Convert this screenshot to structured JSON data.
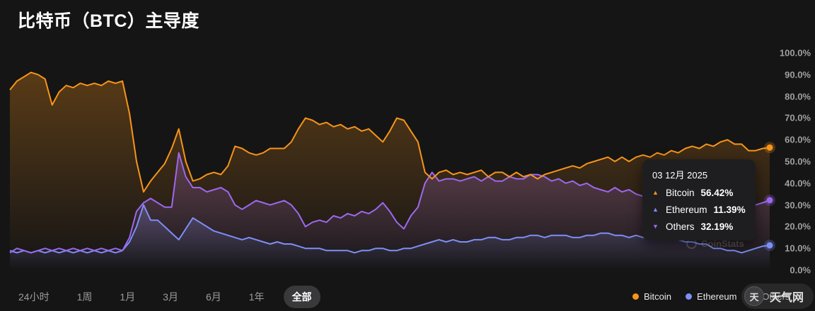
{
  "header": {
    "title": "比特币（BTC）主导度"
  },
  "tooltip": {
    "date": "03 12月 2025",
    "rows": [
      {
        "name": "Bitcoin",
        "value": "56.42%",
        "direction": "up",
        "color": "#f7941a"
      },
      {
        "name": "Ethereum",
        "value": "11.39%",
        "direction": "up",
        "color": "#7d8ff7"
      },
      {
        "name": "Others",
        "value": "32.19%",
        "direction": "down",
        "color": "#9d68f1"
      }
    ]
  },
  "toolbar": {
    "ranges": [
      {
        "id": "24h",
        "label": "24小时",
        "active": false
      },
      {
        "id": "1w",
        "label": "1周",
        "active": false
      },
      {
        "id": "1m",
        "label": "1月",
        "active": false
      },
      {
        "id": "3m",
        "label": "3月",
        "active": false
      },
      {
        "id": "6m",
        "label": "6月",
        "active": false
      },
      {
        "id": "1y",
        "label": "1年",
        "active": false
      },
      {
        "id": "all",
        "label": "全部",
        "active": true
      }
    ]
  },
  "legend": {
    "items": [
      {
        "label": "Bitcoin",
        "color": "#f7941a"
      },
      {
        "label": "Ethereum",
        "color": "#7d8ff7"
      },
      {
        "label": "Others",
        "color": "#9d68f1"
      }
    ]
  },
  "watermarks": {
    "chart": "CoinStats",
    "site": "天气网"
  },
  "chart_data": {
    "type": "line",
    "title": "比特币（BTC）主导度",
    "selected_range": "全部",
    "ylim": [
      0,
      100
    ],
    "unit": "%",
    "grid": false,
    "legend_position": "bottom-right",
    "x_axis_labels_visible": false,
    "y_ticks": [
      "100.0%",
      "90.0%",
      "80.0%",
      "70.0%",
      "60.0%",
      "50.0%",
      "40.0%",
      "30.0%",
      "20.0%",
      "10.0%",
      "0.0%"
    ],
    "series": [
      {
        "name": "Bitcoin",
        "color": "#f7941a",
        "latest": 56.42,
        "values": [
          83,
          87,
          89,
          91,
          90,
          88,
          76,
          82,
          85,
          84,
          86,
          85,
          86,
          85,
          87,
          86,
          87,
          72,
          50,
          36,
          41,
          45,
          49,
          56,
          65,
          50,
          41,
          42,
          44,
          45,
          44,
          48,
          57,
          56,
          54,
          53,
          54,
          56,
          56,
          56,
          59,
          65,
          70,
          69,
          67,
          68,
          66,
          67,
          65,
          66,
          64,
          65,
          62,
          59,
          64,
          70,
          69,
          64,
          59,
          45,
          42,
          45,
          46,
          44,
          45,
          44,
          45,
          46,
          43,
          45,
          45,
          43,
          45,
          43,
          44,
          42,
          44,
          45,
          46,
          47,
          48,
          47,
          49,
          50,
          51,
          52,
          50,
          52,
          50,
          52,
          53,
          52,
          54,
          53,
          55,
          54,
          56,
          57,
          56,
          58,
          57,
          59,
          60,
          58,
          58,
          55,
          55,
          56,
          56.42
        ]
      },
      {
        "name": "Ethereum",
        "color": "#7d8ff7",
        "latest": 11.39,
        "values": [
          9,
          8,
          9,
          8,
          9,
          8,
          9,
          8,
          9,
          8,
          9,
          8,
          9,
          8,
          9,
          8,
          9,
          13,
          20,
          30,
          23,
          23,
          20,
          17,
          14,
          19,
          24,
          22,
          20,
          18,
          17,
          16,
          15,
          14,
          15,
          14,
          13,
          12,
          13,
          12,
          12,
          11,
          10,
          10,
          10,
          9,
          9,
          9,
          9,
          8,
          9,
          9,
          10,
          10,
          9,
          9,
          10,
          10,
          11,
          12,
          13,
          14,
          13,
          14,
          13,
          13,
          14,
          14,
          15,
          15,
          14,
          14,
          15,
          15,
          16,
          16,
          15,
          16,
          16,
          16,
          15,
          15,
          16,
          16,
          17,
          17,
          16,
          16,
          15,
          16,
          15,
          16,
          15,
          15,
          14,
          14,
          13,
          13,
          12,
          12,
          10,
          10,
          9,
          9,
          8,
          9,
          10,
          11,
          11.39
        ]
      },
      {
        "name": "Others",
        "color": "#9d68f1",
        "latest": 32.19,
        "values": [
          8,
          10,
          9,
          8,
          9,
          10,
          9,
          10,
          9,
          10,
          9,
          10,
          9,
          10,
          9,
          10,
          9,
          15,
          27,
          31,
          33,
          31,
          29,
          29,
          54,
          43,
          38,
          38,
          36,
          37,
          38,
          36,
          30,
          28,
          30,
          32,
          31,
          30,
          31,
          32,
          30,
          26,
          20,
          22,
          23,
          22,
          25,
          24,
          26,
          25,
          27,
          26,
          28,
          31,
          27,
          22,
          19,
          25,
          29,
          40,
          45,
          41,
          42,
          42,
          41,
          42,
          43,
          41,
          43,
          41,
          41,
          43,
          42,
          42,
          44,
          44,
          43,
          41,
          42,
          40,
          41,
          39,
          40,
          38,
          37,
          36,
          38,
          36,
          37,
          35,
          34,
          33,
          34,
          32,
          33,
          31,
          30,
          31,
          30,
          29,
          30,
          28,
          27,
          29,
          28,
          31,
          30,
          31,
          32.19
        ]
      }
    ]
  }
}
